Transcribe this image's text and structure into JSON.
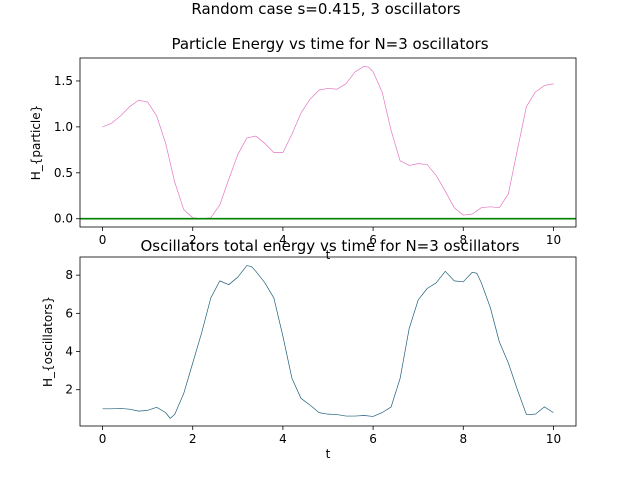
{
  "suptitle": "Random case s=0.415, 3 oscillators",
  "chart_data": [
    {
      "type": "line",
      "title": "Particle Energy vs time for N=3 oscillators",
      "xlabel": "t",
      "ylabel": "H_{particle}",
      "xlim": [
        -0.5,
        10.5
      ],
      "ylim": [
        -0.09,
        1.75
      ],
      "xticks": [
        0,
        2,
        4,
        6,
        8,
        10
      ],
      "yticks": [
        0.0,
        0.5,
        1.0,
        1.5
      ],
      "ytick_labels": [
        "0.0",
        "0.5",
        "1.0",
        "1.5"
      ],
      "grid": false,
      "series": [
        {
          "color": "#e377c2",
          "x": [
            0,
            0.2,
            0.4,
            0.6,
            0.8,
            1.0,
            1.2,
            1.4,
            1.6,
            1.8,
            2.0,
            2.2,
            2.4,
            2.6,
            2.8,
            3.0,
            3.2,
            3.4,
            3.6,
            3.8,
            4.0,
            4.2,
            4.4,
            4.6,
            4.8,
            5.0,
            5.2,
            5.4,
            5.6,
            5.8,
            5.9,
            6.0,
            6.2,
            6.4,
            6.6,
            6.8,
            7.0,
            7.2,
            7.4,
            7.6,
            7.8,
            8.0,
            8.2,
            8.4,
            8.6,
            8.8,
            9.0,
            9.2,
            9.4,
            9.6,
            9.8,
            10.0
          ],
          "y": [
            1.0,
            1.04,
            1.12,
            1.22,
            1.29,
            1.27,
            1.12,
            0.82,
            0.4,
            0.1,
            0.01,
            0.0,
            0.01,
            0.15,
            0.43,
            0.7,
            0.88,
            0.9,
            0.82,
            0.72,
            0.72,
            0.92,
            1.15,
            1.3,
            1.4,
            1.42,
            1.41,
            1.47,
            1.6,
            1.66,
            1.65,
            1.6,
            1.38,
            0.96,
            0.63,
            0.58,
            0.6,
            0.59,
            0.47,
            0.3,
            0.12,
            0.04,
            0.05,
            0.12,
            0.13,
            0.12,
            0.27,
            0.75,
            1.22,
            1.38,
            1.45,
            1.47
          ]
        },
        {
          "color": "#008000",
          "x": [
            -0.5,
            10.5
          ],
          "y": [
            0.0,
            0.0
          ]
        }
      ]
    },
    {
      "type": "line",
      "title": "Oscillators total energy vs time for N=3 oscillators",
      "xlabel": "t",
      "ylabel": "H_{oscillators}",
      "xlim": [
        -0.5,
        10.5
      ],
      "ylim": [
        0.1,
        8.95
      ],
      "xticks": [
        0,
        2,
        4,
        6,
        8,
        10
      ],
      "yticks": [
        2,
        4,
        6,
        8
      ],
      "ytick_labels": [
        "2",
        "4",
        "6",
        "8"
      ],
      "grid": false,
      "series": [
        {
          "color": "#1f5f7a",
          "x": [
            0,
            0.2,
            0.4,
            0.6,
            0.8,
            1.0,
            1.2,
            1.4,
            1.5,
            1.6,
            1.8,
            2.0,
            2.2,
            2.4,
            2.6,
            2.8,
            3.0,
            3.2,
            3.3,
            3.4,
            3.6,
            3.8,
            4.0,
            4.2,
            4.4,
            4.6,
            4.8,
            5.0,
            5.2,
            5.4,
            5.6,
            5.8,
            6.0,
            6.2,
            6.4,
            6.6,
            6.8,
            7.0,
            7.2,
            7.4,
            7.6,
            7.8,
            8.0,
            8.2,
            8.3,
            8.4,
            8.6,
            8.8,
            9.0,
            9.2,
            9.4,
            9.6,
            9.8,
            10.0
          ],
          "y": [
            1.0,
            1.0,
            1.02,
            0.98,
            0.88,
            0.92,
            1.08,
            0.8,
            0.5,
            0.7,
            1.8,
            3.4,
            5.0,
            6.8,
            7.7,
            7.5,
            7.9,
            8.5,
            8.45,
            8.2,
            7.6,
            6.8,
            4.8,
            2.6,
            1.55,
            1.2,
            0.8,
            0.72,
            0.7,
            0.62,
            0.62,
            0.65,
            0.6,
            0.8,
            1.1,
            2.6,
            5.2,
            6.7,
            7.3,
            7.6,
            8.2,
            7.7,
            7.65,
            8.15,
            8.1,
            7.6,
            6.3,
            4.5,
            3.4,
            2.0,
            0.7,
            0.72,
            1.1,
            0.8
          ]
        }
      ]
    }
  ]
}
